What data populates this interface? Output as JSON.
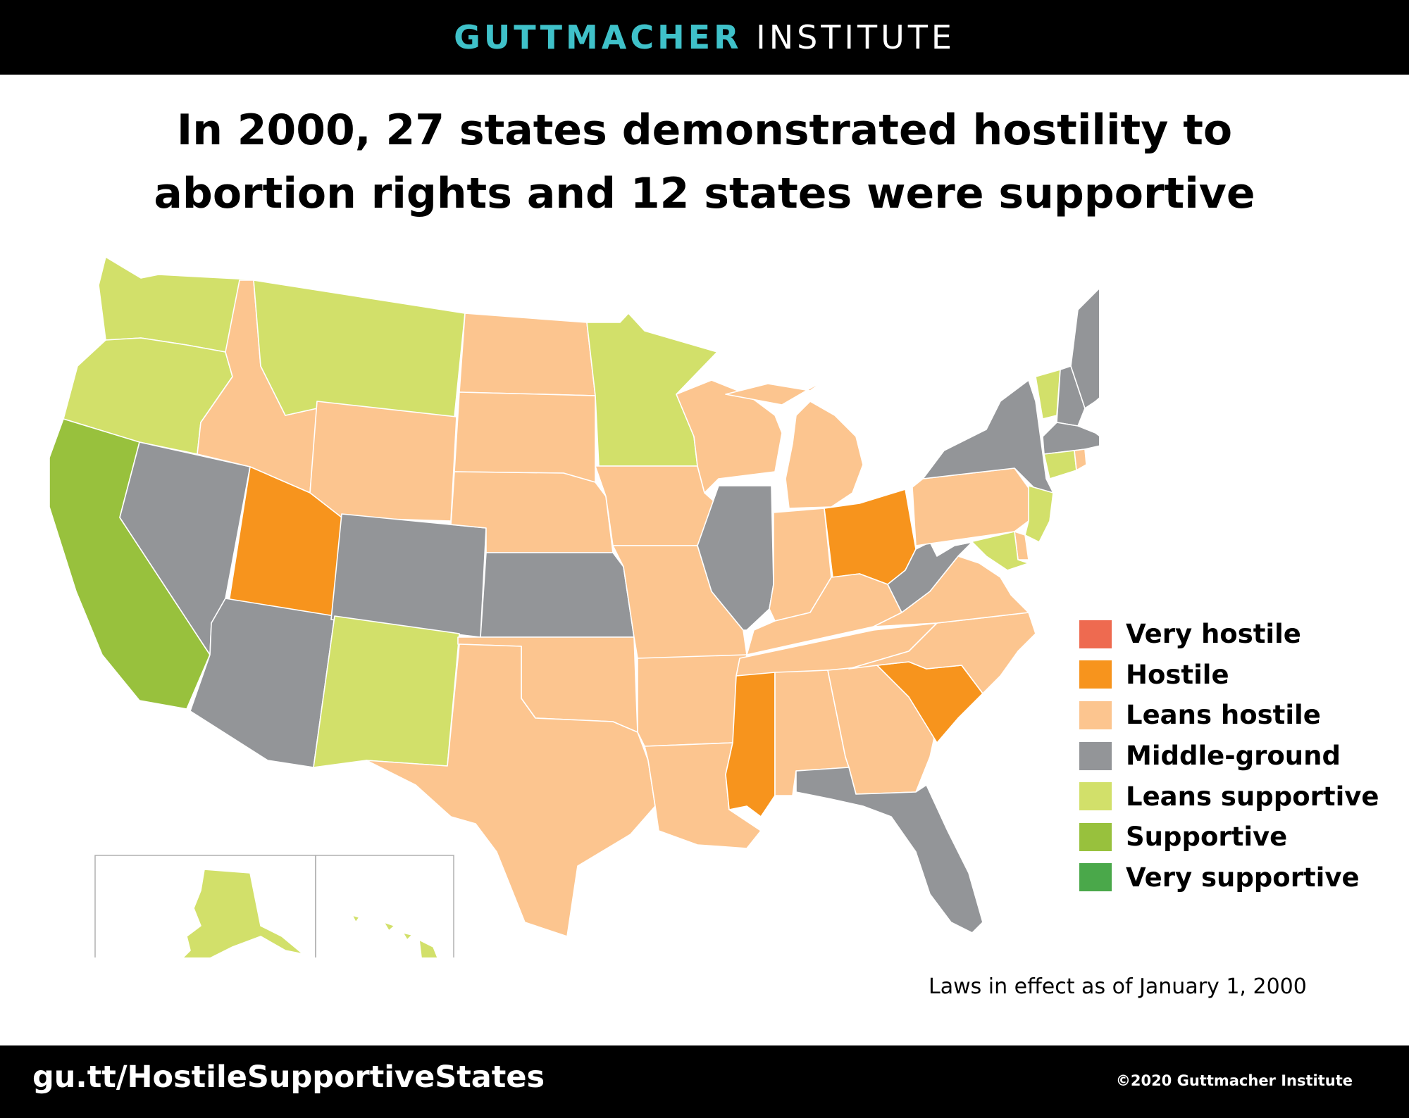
{
  "header": {
    "brand_bold": "GUTTMACHER",
    "brand_regular": "INSTITUTE"
  },
  "title": {
    "line1": "In 2000, 27 states demonstrated hostility to",
    "line2": "abortion rights and 12 states were supportive"
  },
  "legend": [
    {
      "label": "Very hostile",
      "color": "#ee6a50"
    },
    {
      "label": "Hostile",
      "color": "#f7941d"
    },
    {
      "label": "Leans hostile",
      "color": "#fcc58f"
    },
    {
      "label": "Middle-ground",
      "color": "#939598"
    },
    {
      "label": "Leans supportive",
      "color": "#d2e06a"
    },
    {
      "label": "Supportive",
      "color": "#98c13d"
    },
    {
      "label": "Very supportive",
      "color": "#4aa84a"
    }
  ],
  "state_categories": {
    "WA": "Leans supportive",
    "OR": "Leans supportive",
    "CA": "Supportive",
    "NV": "Middle-ground",
    "ID": "Leans hostile",
    "MT": "Leans supportive",
    "WY": "Leans hostile",
    "UT": "Hostile",
    "AZ": "Middle-ground",
    "CO": "Middle-ground",
    "NM": "Leans supportive",
    "ND": "Leans hostile",
    "SD": "Leans hostile",
    "NE": "Leans hostile",
    "KS": "Middle-ground",
    "OK": "Leans hostile",
    "TX": "Leans hostile",
    "MN": "Leans supportive",
    "IA": "Leans hostile",
    "MO": "Leans hostile",
    "AR": "Leans hostile",
    "LA": "Leans hostile",
    "WI": "Leans hostile",
    "IL": "Middle-ground",
    "MI": "Leans hostile",
    "IN": "Leans hostile",
    "OH": "Hostile",
    "KY": "Leans hostile",
    "TN": "Leans hostile",
    "MS": "Hostile",
    "AL": "Leans hostile",
    "GA": "Leans hostile",
    "FL": "Middle-ground",
    "SC": "Hostile",
    "NC": "Leans hostile",
    "VA": "Leans hostile",
    "WV": "Middle-ground",
    "PA": "Leans hostile",
    "NY": "Middle-ground",
    "VT": "Leans supportive",
    "NH": "Middle-ground",
    "ME": "Middle-ground",
    "MA": "Middle-ground",
    "RI": "Leans hostile",
    "CT": "Leans supportive",
    "NJ": "Leans supportive",
    "DE": "Leans hostile",
    "MD": "Leans supportive",
    "AK": "Leans supportive",
    "HI": "Leans supportive"
  },
  "note": "Laws in effect as of January 1, 2000",
  "footer": {
    "url": "gu.tt/HostileSupportiveStates",
    "copyright": "©2020 Guttmacher Institute"
  }
}
